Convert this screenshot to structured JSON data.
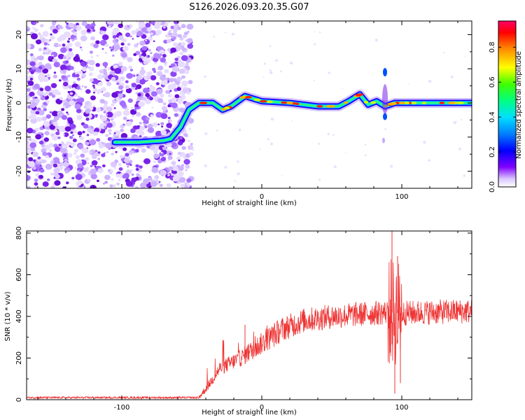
{
  "title": "S126.2026.093.20.35.G07",
  "chart_data": [
    {
      "type": "heatmap",
      "xlabel": "Height of straight line (km)",
      "ylabel": "Frequency (Hz)",
      "xlim": [
        -168,
        150
      ],
      "ylim": [
        -25,
        24
      ],
      "xticks": [
        -100,
        0,
        100
      ],
      "yticks": [
        -20,
        -10,
        0,
        10,
        20
      ],
      "colorbar": {
        "label": "Normalized spectral amplitude",
        "range": [
          0,
          0.95
        ],
        "ticks": [
          "0.0",
          "0.2",
          "0.4",
          "0.6",
          "0.8"
        ],
        "colors": [
          "#ffffff",
          "#c8a8ff",
          "#7a00e6",
          "#0000ff",
          "#00c8ff",
          "#00ff80",
          "#40ff00",
          "#ffff00",
          "#ff8000",
          "#ff0000",
          "#ff0060"
        ]
      },
      "ridge": [
        {
          "x": -105,
          "y": -11.5
        },
        {
          "x": -95,
          "y": -11.5
        },
        {
          "x": -88,
          "y": -11.5
        },
        {
          "x": -70,
          "y": -11
        },
        {
          "x": -65,
          "y": -10.5
        },
        {
          "x": -58,
          "y": -7
        },
        {
          "x": -52,
          "y": -2
        },
        {
          "x": -45,
          "y": 0
        },
        {
          "x": -35,
          "y": 0
        },
        {
          "x": -28,
          "y": -2
        },
        {
          "x": -22,
          "y": -1
        },
        {
          "x": -12,
          "y": 2
        },
        {
          "x": 0,
          "y": 0.5
        },
        {
          "x": 20,
          "y": 0
        },
        {
          "x": 40,
          "y": -1
        },
        {
          "x": 55,
          "y": -1
        },
        {
          "x": 62,
          "y": 0.5
        },
        {
          "x": 70,
          "y": 2.5
        },
        {
          "x": 76,
          "y": -0.5
        },
        {
          "x": 82,
          "y": 0.5
        },
        {
          "x": 88,
          "y": -1
        },
        {
          "x": 95,
          "y": 0
        },
        {
          "x": 120,
          "y": 0
        },
        {
          "x": 150,
          "y": 0
        }
      ]
    },
    {
      "type": "line",
      "xlabel": "Height of straight line (km)",
      "ylabel": "SNR (10 * v/v)",
      "xlim": [
        -168,
        150
      ],
      "ylim": [
        0,
        810
      ],
      "xticks": [
        -100,
        0,
        100
      ],
      "yticks": [
        0,
        200,
        400,
        600,
        800
      ],
      "color": "#ee3333",
      "envelope": [
        {
          "x": -168,
          "y": 10
        },
        {
          "x": -45,
          "y": 10
        },
        {
          "x": -38,
          "y": 70
        },
        {
          "x": -30,
          "y": 150
        },
        {
          "x": -15,
          "y": 200
        },
        {
          "x": 0,
          "y": 270
        },
        {
          "x": 15,
          "y": 340
        },
        {
          "x": 30,
          "y": 380
        },
        {
          "x": 50,
          "y": 400
        },
        {
          "x": 70,
          "y": 410
        },
        {
          "x": 90,
          "y": 420
        },
        {
          "x": 100,
          "y": 415
        },
        {
          "x": 120,
          "y": 420
        },
        {
          "x": 150,
          "y": 425
        }
      ],
      "spikes": [
        {
          "x": -12,
          "y": 360
        },
        {
          "x": 93,
          "y": 810
        },
        {
          "x": 95,
          "y": 30
        },
        {
          "x": 97,
          "y": 690
        },
        {
          "x": 99,
          "y": 80
        }
      ]
    }
  ]
}
